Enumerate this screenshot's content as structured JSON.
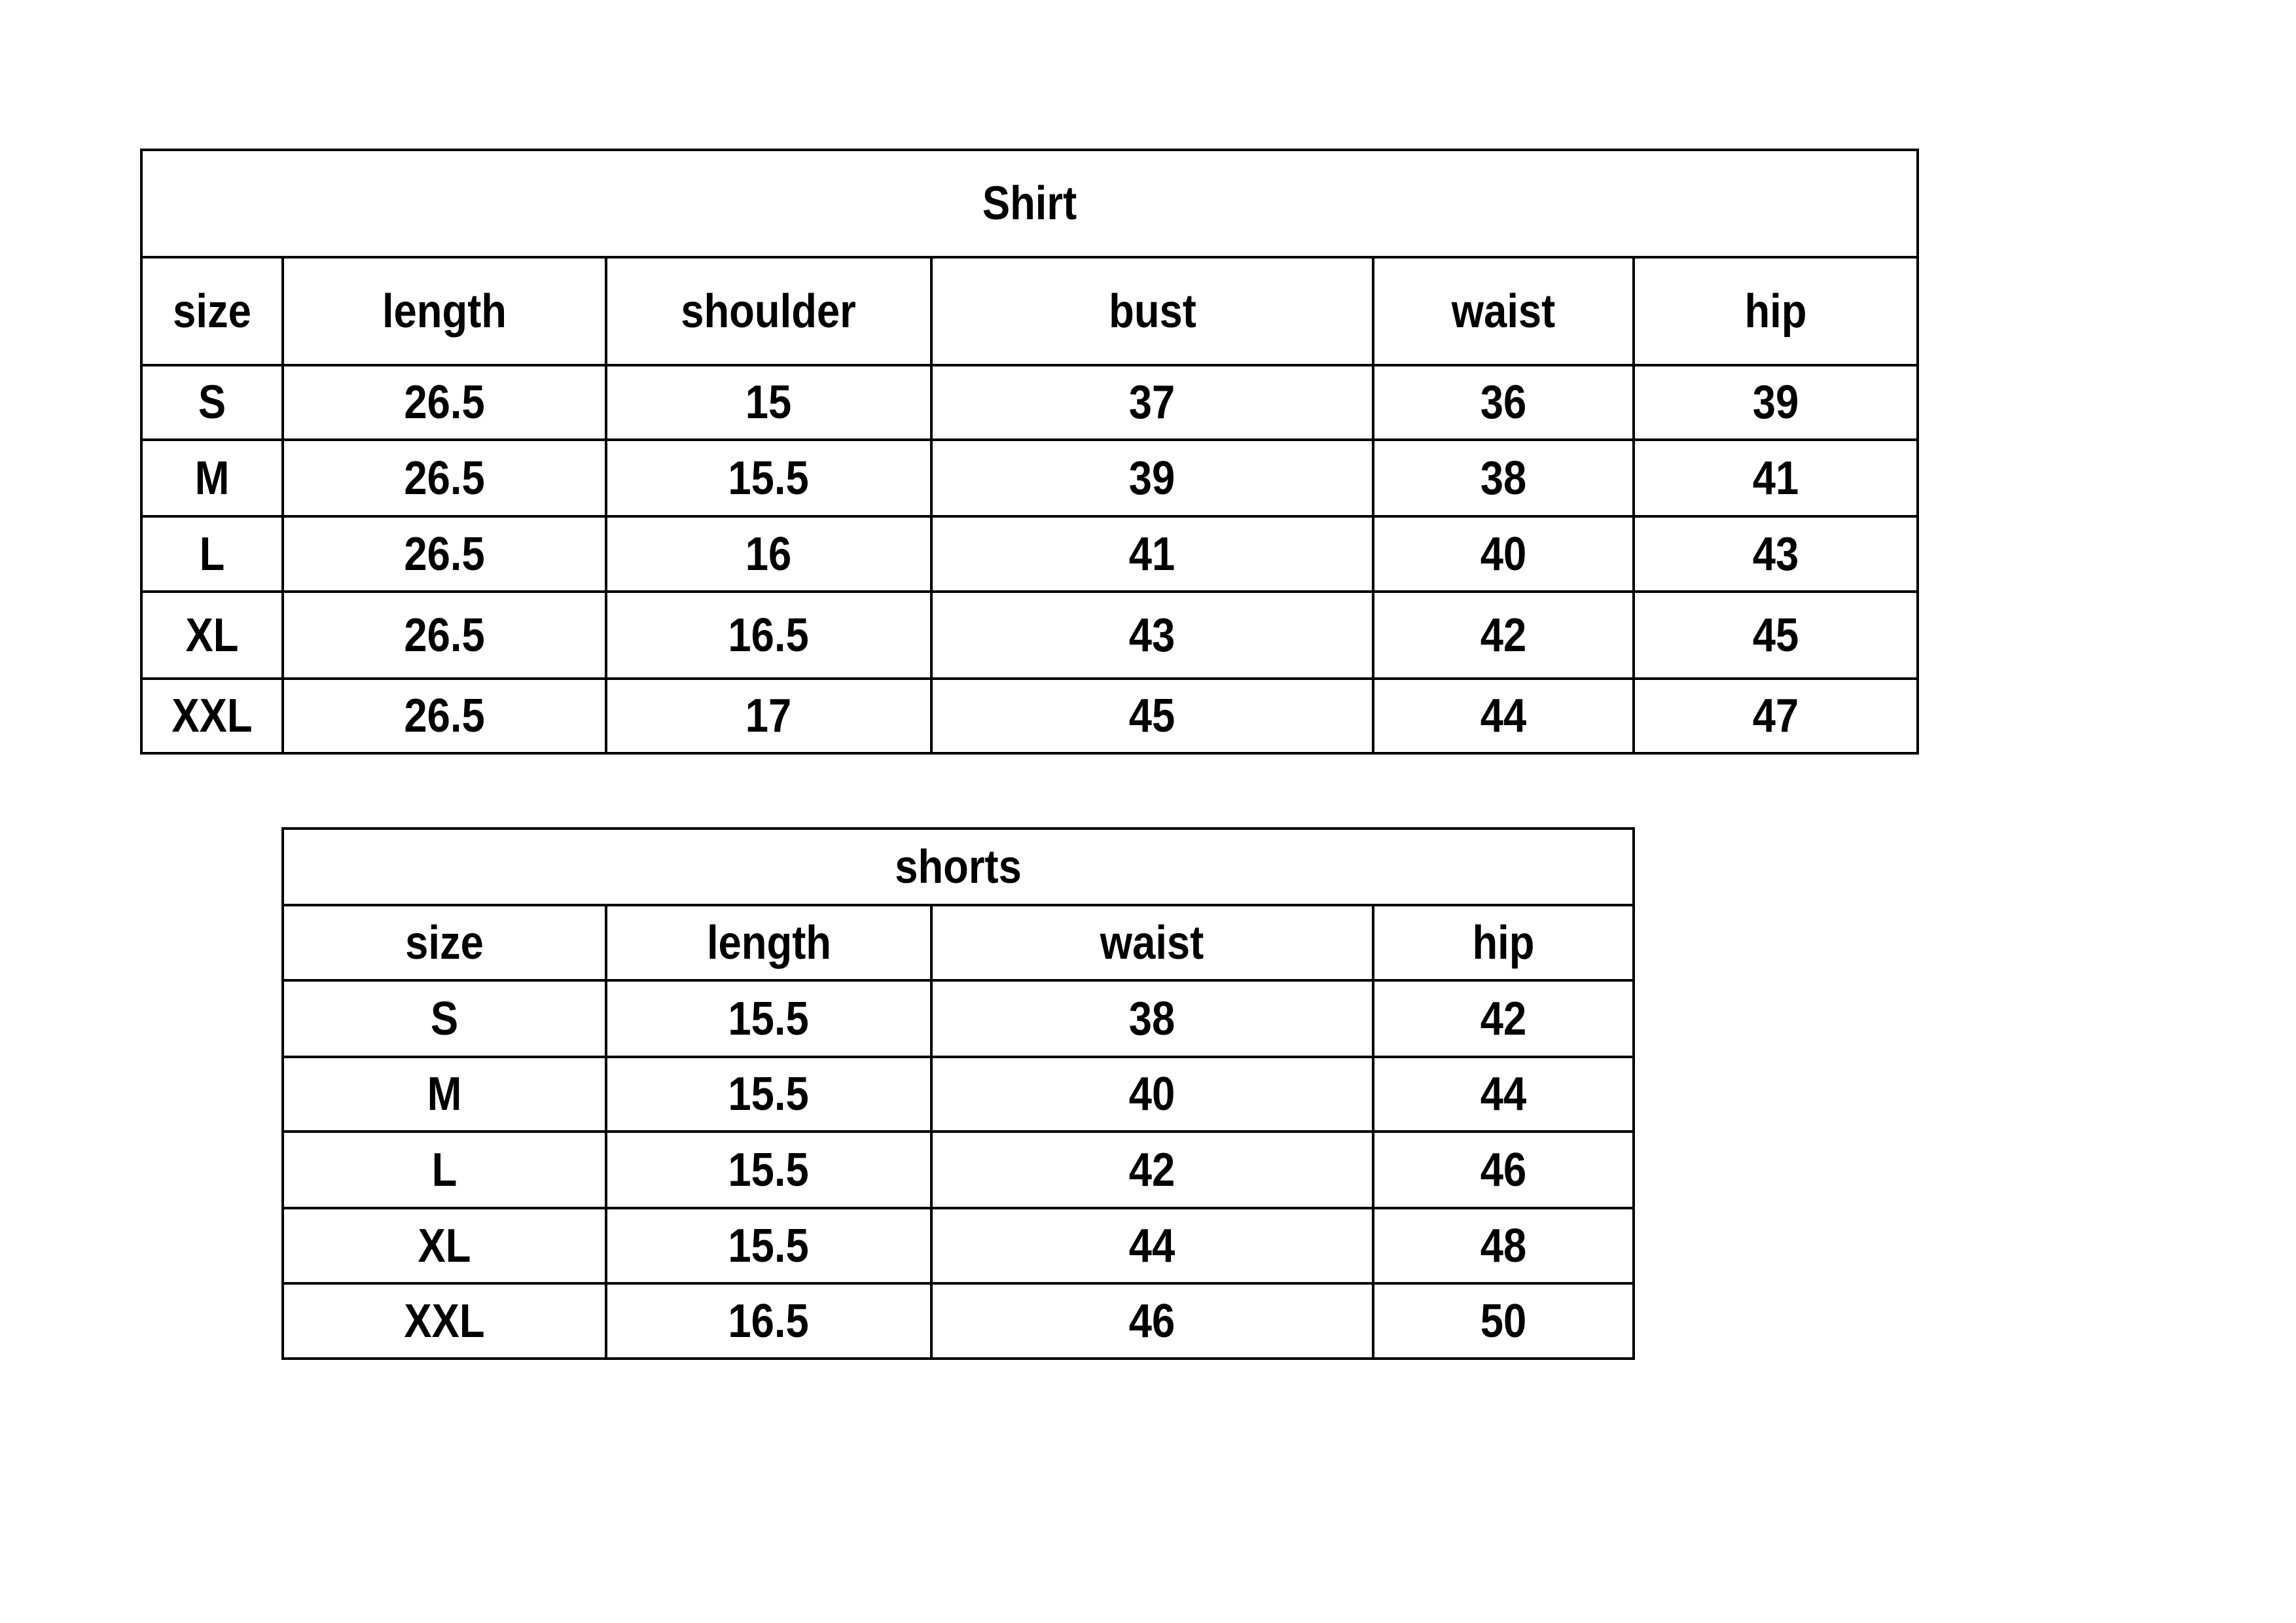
{
  "shirt": {
    "title": "Shirt",
    "headers": [
      "size",
      "length",
      "shoulder",
      "bust",
      "waist",
      "hip"
    ],
    "rows": [
      [
        "S",
        "26.5",
        "15",
        "37",
        "36",
        "39"
      ],
      [
        "M",
        "26.5",
        "15.5",
        "39",
        "38",
        "41"
      ],
      [
        "L",
        "26.5",
        "16",
        "41",
        "40",
        "43"
      ],
      [
        "XL",
        "26.5",
        "16.5",
        "43",
        "42",
        "45"
      ],
      [
        "XXL",
        "26.5",
        "17",
        "45",
        "44",
        "47"
      ]
    ]
  },
  "shorts": {
    "title": "shorts",
    "headers": [
      "size",
      "length",
      "waist",
      "hip"
    ],
    "rows": [
      [
        "S",
        "15.5",
        "38",
        "42"
      ],
      [
        "M",
        "15.5",
        "40",
        "44"
      ],
      [
        "L",
        "15.5",
        "42",
        "46"
      ],
      [
        "XL",
        "15.5",
        "44",
        "48"
      ],
      [
        "XXL",
        "16.5",
        "46",
        "50"
      ]
    ]
  }
}
